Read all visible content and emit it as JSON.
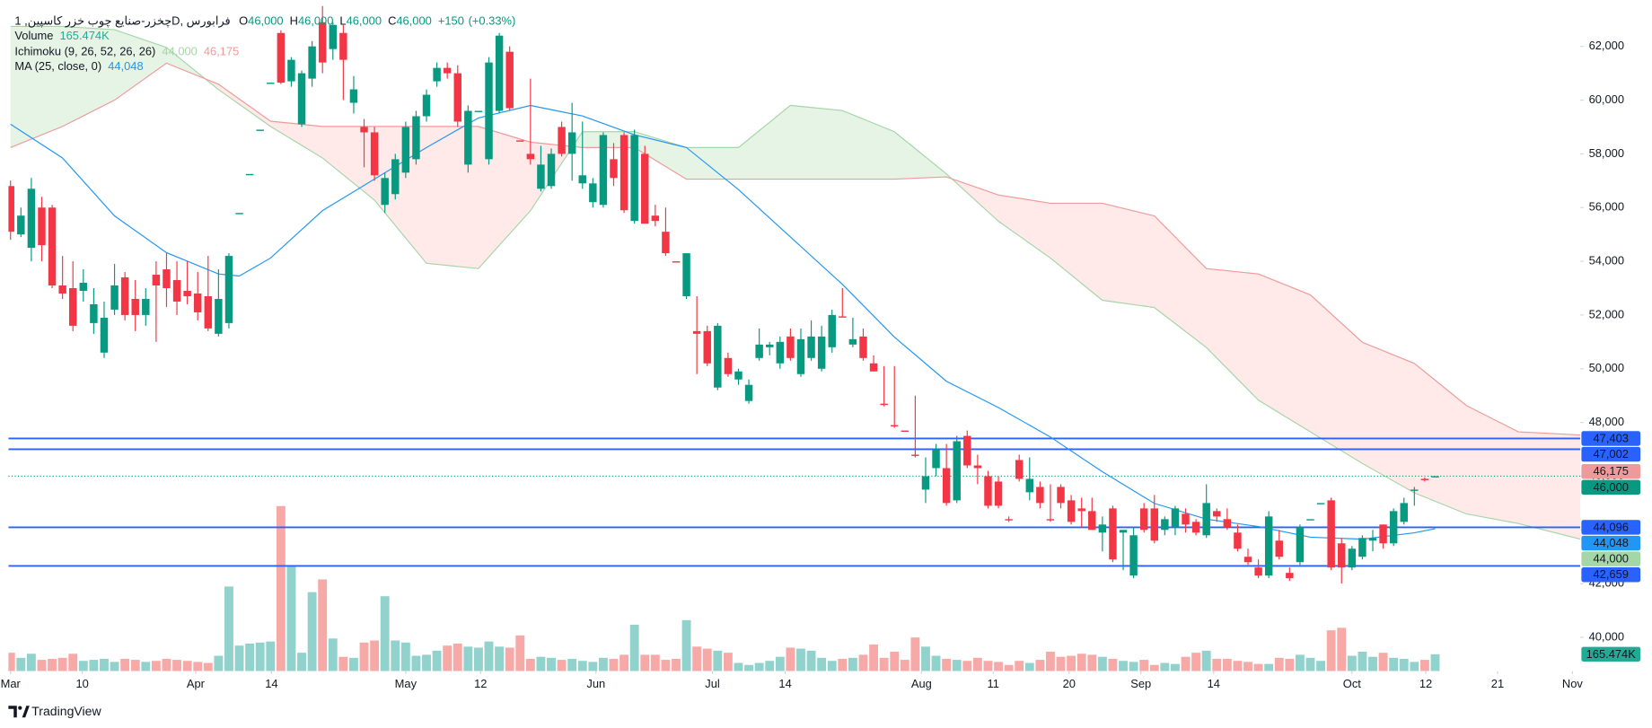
{
  "chart_data": {
    "type": "candlestick",
    "header": {
      "symbol": "چخزر-صنایع چوب خزر کاسپین, 1D, فرابورس",
      "ohlc": [
        {
          "key": "O",
          "value": 46000,
          "label": "46,000"
        },
        {
          "key": "H",
          "value": 46000,
          "label": "46,000"
        },
        {
          "key": "L",
          "value": 46000,
          "label": "46,000"
        },
        {
          "key": "C",
          "value": 46000,
          "label": "46,000"
        }
      ],
      "change": {
        "value": 150,
        "label": "+150"
      },
      "change_pct": {
        "value": 0.33,
        "label": "(+0.33%)"
      }
    },
    "ylim": [
      38745,
      63725
    ],
    "yticks": [
      {
        "value": 40000,
        "label": "40,000"
      },
      {
        "value": 42000,
        "label": "42,000"
      },
      {
        "value": 44000,
        "label": "44,000"
      },
      {
        "value": 46000,
        "label": "46,000"
      },
      {
        "value": 48000,
        "label": "48,000"
      },
      {
        "value": 50000,
        "label": "50,000"
      },
      {
        "value": 52000,
        "label": "52,000"
      },
      {
        "value": 54000,
        "label": "54,000"
      },
      {
        "value": 56000,
        "label": "56,000"
      },
      {
        "value": 58000,
        "label": "58,000"
      },
      {
        "value": 60000,
        "label": "60,000"
      },
      {
        "value": 62000,
        "label": "62,000"
      }
    ],
    "xticks": [
      {
        "value": 0,
        "label": "Mar"
      },
      {
        "value": 6.9,
        "label": "10"
      },
      {
        "value": 17.8,
        "label": "Apr"
      },
      {
        "value": 25.1,
        "label": "14"
      },
      {
        "value": 38,
        "label": "May"
      },
      {
        "value": 45.2,
        "label": "12"
      },
      {
        "value": 56.3,
        "label": "Jun"
      },
      {
        "value": 67.5,
        "label": "Jul"
      },
      {
        "value": 74.5,
        "label": "14"
      },
      {
        "value": 87.6,
        "label": "Aug"
      },
      {
        "value": 94.5,
        "label": "11"
      },
      {
        "value": 101.8,
        "label": "20"
      },
      {
        "value": 108.7,
        "label": "Sep"
      },
      {
        "value": 115.7,
        "label": "14"
      },
      {
        "value": 129,
        "label": "Oct"
      },
      {
        "value": 136.1,
        "label": "12"
      },
      {
        "value": 143,
        "label": "21"
      },
      {
        "value": 150.2,
        "label": "Nov"
      }
    ],
    "up_color": "#089981",
    "down_color": "#f23645",
    "candles": [
      [
        56800,
        57000,
        54800,
        55100
      ],
      [
        55000,
        56000,
        54900,
        55700
      ],
      [
        54500,
        57100,
        54000,
        56700
      ],
      [
        56000,
        56400,
        54000,
        54600
      ],
      [
        56000,
        56100,
        53000,
        53100
      ],
      [
        53100,
        54200,
        52600,
        52800
      ],
      [
        53000,
        54000,
        51400,
        51600
      ],
      [
        52900,
        53700,
        52500,
        53200
      ],
      [
        51700,
        53000,
        51300,
        52400
      ],
      [
        50600,
        52500,
        50400,
        51900
      ],
      [
        52200,
        53900,
        52000,
        53100
      ],
      [
        53400,
        53600,
        51800,
        52000
      ],
      [
        52600,
        53300,
        51400,
        52000
      ],
      [
        52000,
        53000,
        51600,
        52600
      ],
      [
        53500,
        54000,
        51000,
        53100
      ],
      [
        53700,
        54300,
        52300,
        53000
      ],
      [
        53300,
        54000,
        52000,
        52500
      ],
      [
        52900,
        54000,
        52400,
        52700
      ],
      [
        52800,
        53600,
        51800,
        52100
      ],
      [
        52700,
        54200,
        51400,
        51500
      ],
      [
        51300,
        53700,
        51200,
        52600
      ],
      [
        51700,
        54300,
        51500,
        54200
      ],
      [
        55800,
        55800,
        55800,
        55800
      ],
      [
        57250,
        57250,
        57250,
        57250
      ],
      [
        58900,
        58900,
        58900,
        58900
      ],
      [
        60650,
        60650,
        60650,
        60650
      ],
      [
        62500,
        62600,
        60600,
        60650
      ],
      [
        60700,
        61600,
        60500,
        61500
      ],
      [
        59100,
        61100,
        59000,
        61000
      ],
      [
        60800,
        62200,
        60500,
        62000
      ],
      [
        62900,
        63500,
        61000,
        61400
      ],
      [
        61900,
        62900,
        61500,
        62800
      ],
      [
        62500,
        62800,
        60000,
        61500
      ],
      [
        59900,
        60900,
        59500,
        60400
      ],
      [
        59000,
        59300,
        57500,
        58800
      ],
      [
        58800,
        59000,
        57000,
        57200
      ],
      [
        56100,
        57300,
        55800,
        57100
      ],
      [
        56500,
        58000,
        56300,
        57800
      ],
      [
        57300,
        59200,
        57100,
        59000
      ],
      [
        57800,
        59600,
        57600,
        59400
      ],
      [
        59400,
        60400,
        59200,
        60200
      ],
      [
        60700,
        61400,
        60500,
        61200
      ],
      [
        61200,
        61400,
        60800,
        61000
      ],
      [
        61000,
        61300,
        59000,
        59200
      ],
      [
        57600,
        59800,
        57300,
        59600
      ],
      [
        59600,
        59600,
        59600,
        59600
      ],
      [
        57800,
        61600,
        57600,
        61400
      ],
      [
        59600,
        62500,
        59500,
        62400
      ],
      [
        61800,
        62000,
        59600,
        59700
      ],
      [
        58500,
        58500,
        58500,
        58500
      ],
      [
        58000,
        60800,
        57600,
        57800
      ],
      [
        56700,
        58300,
        56600,
        57600
      ],
      [
        56800,
        58200,
        56700,
        58000
      ],
      [
        59000,
        59200,
        57900,
        58000
      ],
      [
        58000,
        59900,
        57000,
        58800
      ],
      [
        56900,
        59200,
        56700,
        57200
      ],
      [
        56200,
        57100,
        56000,
        56900
      ],
      [
        56100,
        58800,
        56000,
        58700
      ],
      [
        57800,
        58400,
        56800,
        57100
      ],
      [
        58700,
        58800,
        55800,
        55900
      ],
      [
        55500,
        58900,
        55400,
        58700
      ],
      [
        58000,
        58300,
        55400,
        55400
      ],
      [
        55700,
        56100,
        55300,
        55500
      ],
      [
        55100,
        56000,
        54200,
        54300
      ],
      [
        54000,
        54000,
        54000,
        54000
      ],
      [
        52700,
        54300,
        52600,
        54300
      ],
      [
        51400,
        52700,
        49800,
        51300
      ],
      [
        51400,
        51600,
        50100,
        50200
      ],
      [
        49300,
        51700,
        49200,
        51600
      ],
      [
        50400,
        50600,
        49700,
        49800
      ],
      [
        49600,
        50000,
        49400,
        49900
      ],
      [
        48800,
        49600,
        48700,
        49400
      ],
      [
        50400,
        51500,
        50300,
        50900
      ],
      [
        50800,
        51000,
        50500,
        50900
      ],
      [
        50200,
        51200,
        50000,
        51000
      ],
      [
        51200,
        51500,
        50300,
        50400
      ],
      [
        49800,
        51500,
        49700,
        51100
      ],
      [
        50400,
        51800,
        50300,
        51200
      ],
      [
        50000,
        51600,
        49900,
        51200
      ],
      [
        50800,
        52200,
        50600,
        52000
      ],
      [
        51950,
        53000,
        51950,
        51950
      ],
      [
        50900,
        51900,
        50800,
        51100
      ],
      [
        51200,
        51500,
        50300,
        50400
      ],
      [
        50200,
        50500,
        49900,
        49900
      ],
      [
        48700,
        50100,
        48600,
        48650
      ],
      [
        47900,
        50100,
        47800,
        47900
      ],
      [
        47700,
        47700,
        47700,
        47700
      ],
      [
        46800,
        49000,
        46700,
        46800
      ],
      [
        45500,
        46700,
        45000,
        46000
      ],
      [
        46300,
        47200,
        46000,
        47000
      ],
      [
        46300,
        47200,
        44900,
        45000
      ],
      [
        45100,
        47500,
        45000,
        47300
      ],
      [
        47500,
        47700,
        46300,
        46400
      ],
      [
        46400,
        46800,
        45700,
        46300
      ],
      [
        46000,
        46200,
        44800,
        44900
      ],
      [
        45800,
        46000,
        44800,
        44900
      ],
      [
        44400,
        44500,
        44300,
        44400
      ],
      [
        46600,
        46800,
        45800,
        45900
      ],
      [
        45400,
        46700,
        45100,
        45900
      ],
      [
        45600,
        45800,
        44800,
        45000
      ],
      [
        44400,
        45700,
        44300,
        44400
      ],
      [
        45600,
        45700,
        44800,
        45000
      ],
      [
        45100,
        45300,
        44200,
        44300
      ],
      [
        44800,
        45200,
        44100,
        44700
      ],
      [
        44700,
        45200,
        44000,
        44000
      ],
      [
        43900,
        44500,
        43200,
        44200
      ],
      [
        44800,
        44900,
        42800,
        42900
      ],
      [
        43900,
        44000,
        42500,
        44000
      ],
      [
        42300,
        44100,
        42200,
        43800
      ],
      [
        44800,
        45000,
        43900,
        44000
      ],
      [
        44800,
        45300,
        43500,
        43600
      ],
      [
        44000,
        44500,
        43800,
        44400
      ],
      [
        44100,
        44900,
        43800,
        44800
      ],
      [
        44600,
        44800,
        43900,
        44200
      ],
      [
        44300,
        44400,
        43800,
        43900
      ],
      [
        43800,
        45700,
        43700,
        45000
      ],
      [
        44700,
        44800,
        44300,
        44500
      ],
      [
        44400,
        44800,
        44000,
        44100
      ],
      [
        43900,
        44200,
        43200,
        43300
      ],
      [
        43000,
        43300,
        42700,
        42800
      ],
      [
        42600,
        42900,
        42200,
        42300
      ],
      [
        42300,
        44700,
        42200,
        44500
      ],
      [
        43600,
        44000,
        42900,
        43000
      ],
      [
        42400,
        42600,
        42100,
        42200
      ],
      [
        42800,
        44200,
        42700,
        44100
      ],
      [
        44400,
        44400,
        44400,
        44400
      ],
      [
        45000,
        45000,
        45000,
        45000
      ],
      [
        45100,
        45200,
        42500,
        42600
      ],
      [
        43500,
        43700,
        42000,
        42600
      ],
      [
        42600,
        43400,
        42500,
        43300
      ],
      [
        43000,
        43800,
        42900,
        43700
      ],
      [
        43600,
        44000,
        43200,
        43700
      ],
      [
        44200,
        44200,
        43300,
        43500
      ],
      [
        43500,
        44800,
        43400,
        44700
      ],
      [
        44300,
        45200,
        44200,
        45000
      ],
      [
        45500,
        45600,
        44900,
        45500
      ],
      [
        45900,
        45950,
        45800,
        45850
      ],
      [
        46000,
        46000,
        46000,
        46000
      ]
    ],
    "volume": {
      "name": "Volume",
      "ylim": [
        0,
        1655000
      ],
      "up_color": "#92d2cc",
      "down_color": "#f7a9a7",
      "tag_color": "#22ab94",
      "current": {
        "value": 165474,
        "label": "165.474K"
      },
      "values": [
        180000,
        130000,
        170000,
        110000,
        120000,
        130000,
        170000,
        100000,
        110000,
        120000,
        90000,
        120000,
        110000,
        90000,
        100000,
        120000,
        110000,
        100000,
        90000,
        80000,
        150000,
        830000,
        250000,
        270000,
        280000,
        290000,
        1620000,
        1035000,
        180000,
        775000,
        900000,
        320000,
        140000,
        130000,
        280000,
        300000,
        735000,
        300000,
        280000,
        150000,
        160000,
        200000,
        250000,
        270000,
        240000,
        230000,
        290000,
        240000,
        230000,
        350000,
        120000,
        140000,
        130000,
        110000,
        120000,
        100000,
        90000,
        130000,
        120000,
        160000,
        455000,
        160000,
        160000,
        110000,
        120000,
        500000,
        240000,
        220000,
        200000,
        180000,
        80000,
        60000,
        80000,
        100000,
        140000,
        230000,
        220000,
        200000,
        130000,
        100000,
        120000,
        130000,
        160000,
        260000,
        130000,
        190000,
        110000,
        330000,
        240000,
        150000,
        120000,
        110000,
        100000,
        130000,
        100000,
        90000,
        60000,
        100000,
        80000,
        110000,
        190000,
        140000,
        150000,
        170000,
        160000,
        140000,
        120000,
        100000,
        90000,
        110000,
        60000,
        80000,
        70000,
        140000,
        180000,
        200000,
        120000,
        120000,
        100000,
        90000,
        70000,
        70000,
        130000,
        120000,
        160000,
        130000,
        100000,
        400000,
        425000,
        150000,
        190000,
        140000,
        180000,
        130000,
        120000,
        90000,
        110000,
        165474
      ]
    },
    "ichimoku": {
      "name": "Ichimoku (9, 26, 52, 26, 26)",
      "colors": [
        "#a5d6a7",
        "#ef9a9a"
      ],
      "fill_colors": [
        "#4caf50",
        "#ff5252"
      ],
      "values": [
        {
          "value": 44000,
          "label": "44,000"
        },
        {
          "value": 46175,
          "label": "46,175"
        }
      ],
      "x": [
        0,
        5,
        10,
        15,
        20,
        25,
        30,
        35,
        40,
        45,
        50,
        55,
        60,
        65,
        70,
        75,
        80,
        85,
        90,
        95,
        100,
        105,
        110,
        115,
        120,
        125,
        130,
        135,
        140,
        145,
        151
      ],
      "span_a": [
        62745,
        62745,
        62625,
        61960,
        60390,
        59020,
        57845,
        56280,
        53925,
        53730,
        55885,
        58825,
        58825,
        58235,
        58235,
        59805,
        59610,
        58825,
        57255,
        55495,
        54120,
        52550,
        52280,
        50790,
        48830,
        47650,
        46475,
        45380,
        44595,
        44240,
        43655
      ],
      "span_b": [
        58235,
        59020,
        60000,
        61375,
        60590,
        59215,
        59020,
        59020,
        59020,
        59020,
        58435,
        58235,
        58235,
        57060,
        57060,
        57060,
        57060,
        57060,
        57140,
        56470,
        56160,
        56160,
        55690,
        53730,
        53530,
        52750,
        50985,
        50200,
        48630,
        47650,
        47535
      ]
    },
    "ma": {
      "name": "MA (25, close, 0)",
      "color": "#2196f3",
      "current": {
        "value": 44048,
        "label": "44,048"
      },
      "x": [
        0,
        5,
        10,
        15,
        20,
        22,
        25,
        30,
        35,
        40,
        45,
        50,
        55,
        60,
        65,
        70,
        75,
        80,
        85,
        90,
        95,
        100,
        105,
        110,
        115,
        120,
        125,
        130,
        135,
        137
      ],
      "values": [
        59100,
        57845,
        55690,
        54320,
        53530,
        53450,
        54120,
        55885,
        57060,
        58235,
        59335,
        59800,
        59410,
        58710,
        58235,
        56670,
        54905,
        53140,
        51180,
        49535,
        48555,
        47460,
        46165,
        44990,
        44400,
        44125,
        43730,
        43655,
        43890,
        44048
      ]
    },
    "levels": {
      "color": "#2962ff",
      "values": [
        {
          "value": 47403,
          "label": "47,403"
        },
        {
          "value": 47002,
          "label": "47,002"
        },
        {
          "value": 44096,
          "label": "44,096"
        },
        {
          "value": 42659,
          "label": "42,659"
        }
      ]
    },
    "brand": "TradingView"
  }
}
